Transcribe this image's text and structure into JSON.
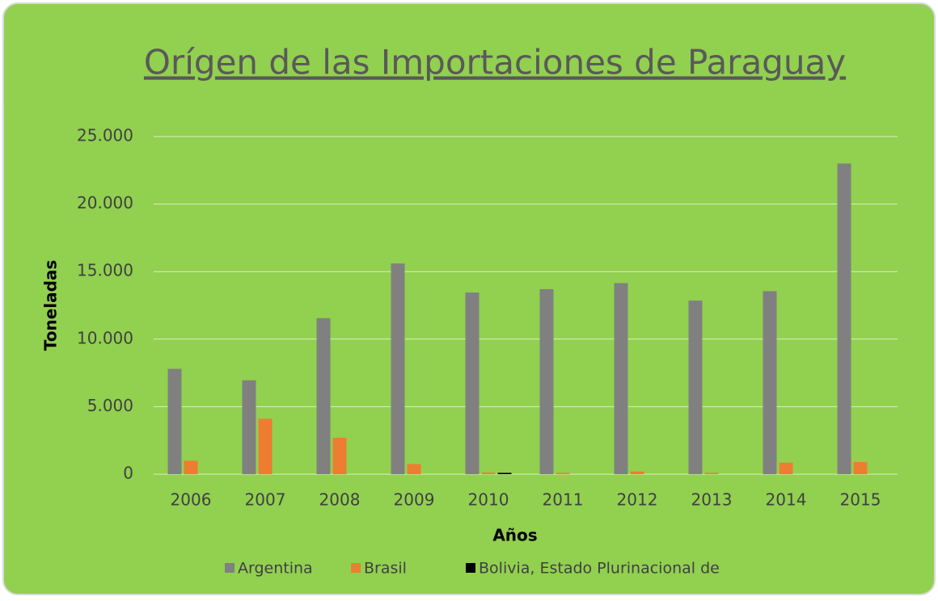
{
  "chart_data": {
    "type": "bar",
    "title": "Orígen de las Importaciones de Paraguay",
    "x_label": "Años",
    "y_label": "Toneladas",
    "categories": [
      "2006",
      "2007",
      "2008",
      "2009",
      "2010",
      "2011",
      "2012",
      "2013",
      "2014",
      "2015"
    ],
    "series": [
      {
        "name": "Argentina",
        "color": "#808080",
        "values": [
          7800,
          6950,
          11550,
          15600,
          13450,
          13700,
          14150,
          12850,
          13550,
          23000
        ]
      },
      {
        "name": "Brasil",
        "color": "#ed7d31",
        "values": [
          1000,
          4100,
          2700,
          750,
          120,
          100,
          200,
          100,
          850,
          900
        ]
      },
      {
        "name": "Bolivia, Estado Plurinacional de",
        "color": "#000000",
        "values": [
          0,
          0,
          0,
          0,
          100,
          0,
          0,
          0,
          0,
          0
        ]
      }
    ],
    "ylim": [
      0,
      25000
    ],
    "yticks": [
      0,
      {
        "value": 5000,
        "label": "5.000"
      },
      {
        "value": 10000,
        "label": "10.000"
      },
      {
        "value": 15000,
        "label": "15.000"
      },
      {
        "value": 20000,
        "label": "20.000"
      },
      {
        "value": 25000,
        "label": "25.000"
      }
    ],
    "grid": true,
    "legend": "bottom"
  }
}
